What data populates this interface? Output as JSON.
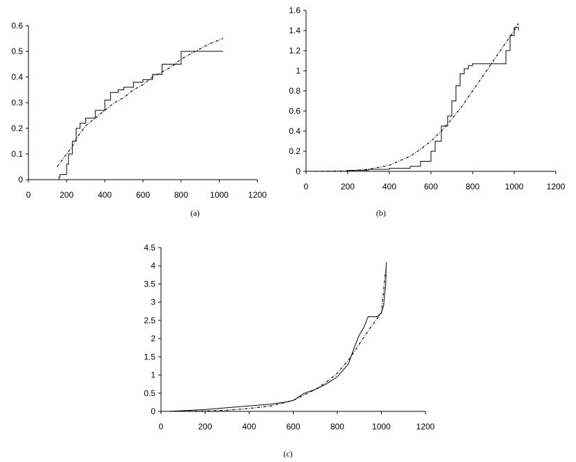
{
  "chart_data": [
    {
      "type": "line",
      "panel_label": "(a)",
      "xlim": [
        0,
        1200
      ],
      "ylim": [
        0,
        0.6
      ],
      "x_ticks": [
        "0",
        "200",
        "400",
        "600",
        "800",
        "1000",
        "1200"
      ],
      "y_ticks": [
        "0",
        "0.1",
        "0.2",
        "0.3",
        "0.4",
        "0.5",
        "0.6"
      ],
      "grid": false,
      "series": [
        {
          "style": "solid-step",
          "x": [
            150,
            160,
            165,
            190,
            200,
            210,
            230,
            250,
            270,
            300,
            350,
            400,
            430,
            470,
            500,
            550,
            580,
            600,
            650,
            700,
            750,
            800,
            850,
            1020
          ],
          "y": [
            0,
            0.01,
            0.02,
            0.02,
            0.06,
            0.1,
            0.15,
            0.2,
            0.22,
            0.24,
            0.27,
            0.31,
            0.34,
            0.35,
            0.36,
            0.38,
            0.38,
            0.39,
            0.41,
            0.45,
            0.45,
            0.5,
            0.5,
            0.5
          ]
        },
        {
          "style": "dash-dot",
          "x": [
            150,
            170,
            200,
            230,
            260,
            300,
            350,
            400,
            450,
            500,
            550,
            600,
            650,
            700,
            750,
            800,
            850,
            900,
            950,
            1020
          ],
          "y": [
            0.05,
            0.07,
            0.1,
            0.13,
            0.17,
            0.21,
            0.24,
            0.27,
            0.3,
            0.32,
            0.35,
            0.37,
            0.4,
            0.42,
            0.44,
            0.47,
            0.49,
            0.51,
            0.53,
            0.55
          ]
        }
      ]
    },
    {
      "type": "line",
      "panel_label": "(b)",
      "xlim": [
        0,
        1200
      ],
      "ylim": [
        0,
        1.6
      ],
      "x_ticks": [
        "0",
        "200",
        "400",
        "600",
        "800",
        "1000",
        "1200"
      ],
      "y_ticks": [
        "0",
        "0.2",
        "0.4",
        "0.6",
        "0.8",
        "1",
        "1.2",
        "1.4",
        "1.6"
      ],
      "grid": false,
      "series": [
        {
          "style": "solid-step",
          "x": [
            40,
            200,
            300,
            400,
            500,
            550,
            600,
            620,
            650,
            680,
            700,
            720,
            740,
            760,
            780,
            800,
            850,
            900,
            940,
            960,
            980,
            1000,
            1020
          ],
          "y": [
            0,
            0.01,
            0.02,
            0.03,
            0.05,
            0.1,
            0.2,
            0.3,
            0.45,
            0.55,
            0.7,
            0.85,
            0.97,
            1.02,
            1.05,
            1.07,
            1.07,
            1.07,
            1.07,
            1.2,
            1.35,
            1.43,
            1.4
          ]
        },
        {
          "style": "dash-dot",
          "x": [
            40,
            200,
            300,
            400,
            500,
            550,
            600,
            650,
            700,
            750,
            800,
            850,
            900,
            950,
            1000,
            1020
          ],
          "y": [
            0,
            0.005,
            0.02,
            0.06,
            0.15,
            0.22,
            0.3,
            0.4,
            0.52,
            0.65,
            0.8,
            0.95,
            1.1,
            1.25,
            1.4,
            1.47
          ]
        }
      ]
    },
    {
      "type": "line",
      "panel_label": "(c)",
      "xlim": [
        0,
        1200
      ],
      "ylim": [
        0,
        4.5
      ],
      "x_ticks": [
        "0",
        "200",
        "400",
        "600",
        "800",
        "1000",
        "1200"
      ],
      "y_ticks": [
        "0",
        "0.5",
        "1",
        "1.5",
        "2",
        "2.5",
        "3",
        "3.5",
        "4",
        "4.5"
      ],
      "grid": false,
      "series": [
        {
          "style": "solid",
          "x": [
            40,
            100,
            200,
            300,
            400,
            500,
            560,
            600,
            650,
            700,
            750,
            800,
            850,
            880,
            900,
            920,
            940,
            960,
            980,
            1000,
            1010,
            1020,
            1022
          ],
          "y": [
            0,
            0.02,
            0.05,
            0.1,
            0.15,
            0.2,
            0.25,
            0.3,
            0.5,
            0.6,
            0.75,
            0.95,
            1.3,
            1.8,
            2.1,
            2.3,
            2.6,
            2.6,
            2.6,
            2.7,
            2.9,
            3.5,
            4.1
          ]
        },
        {
          "style": "dash-dot",
          "x": [
            40,
            200,
            300,
            400,
            500,
            600,
            650,
            700,
            750,
            800,
            850,
            900,
            950,
            1000,
            1020
          ],
          "y": [
            0,
            0.01,
            0.03,
            0.08,
            0.15,
            0.3,
            0.45,
            0.6,
            0.8,
            1.05,
            1.4,
            1.85,
            2.3,
            2.7,
            3.9
          ]
        }
      ]
    }
  ]
}
